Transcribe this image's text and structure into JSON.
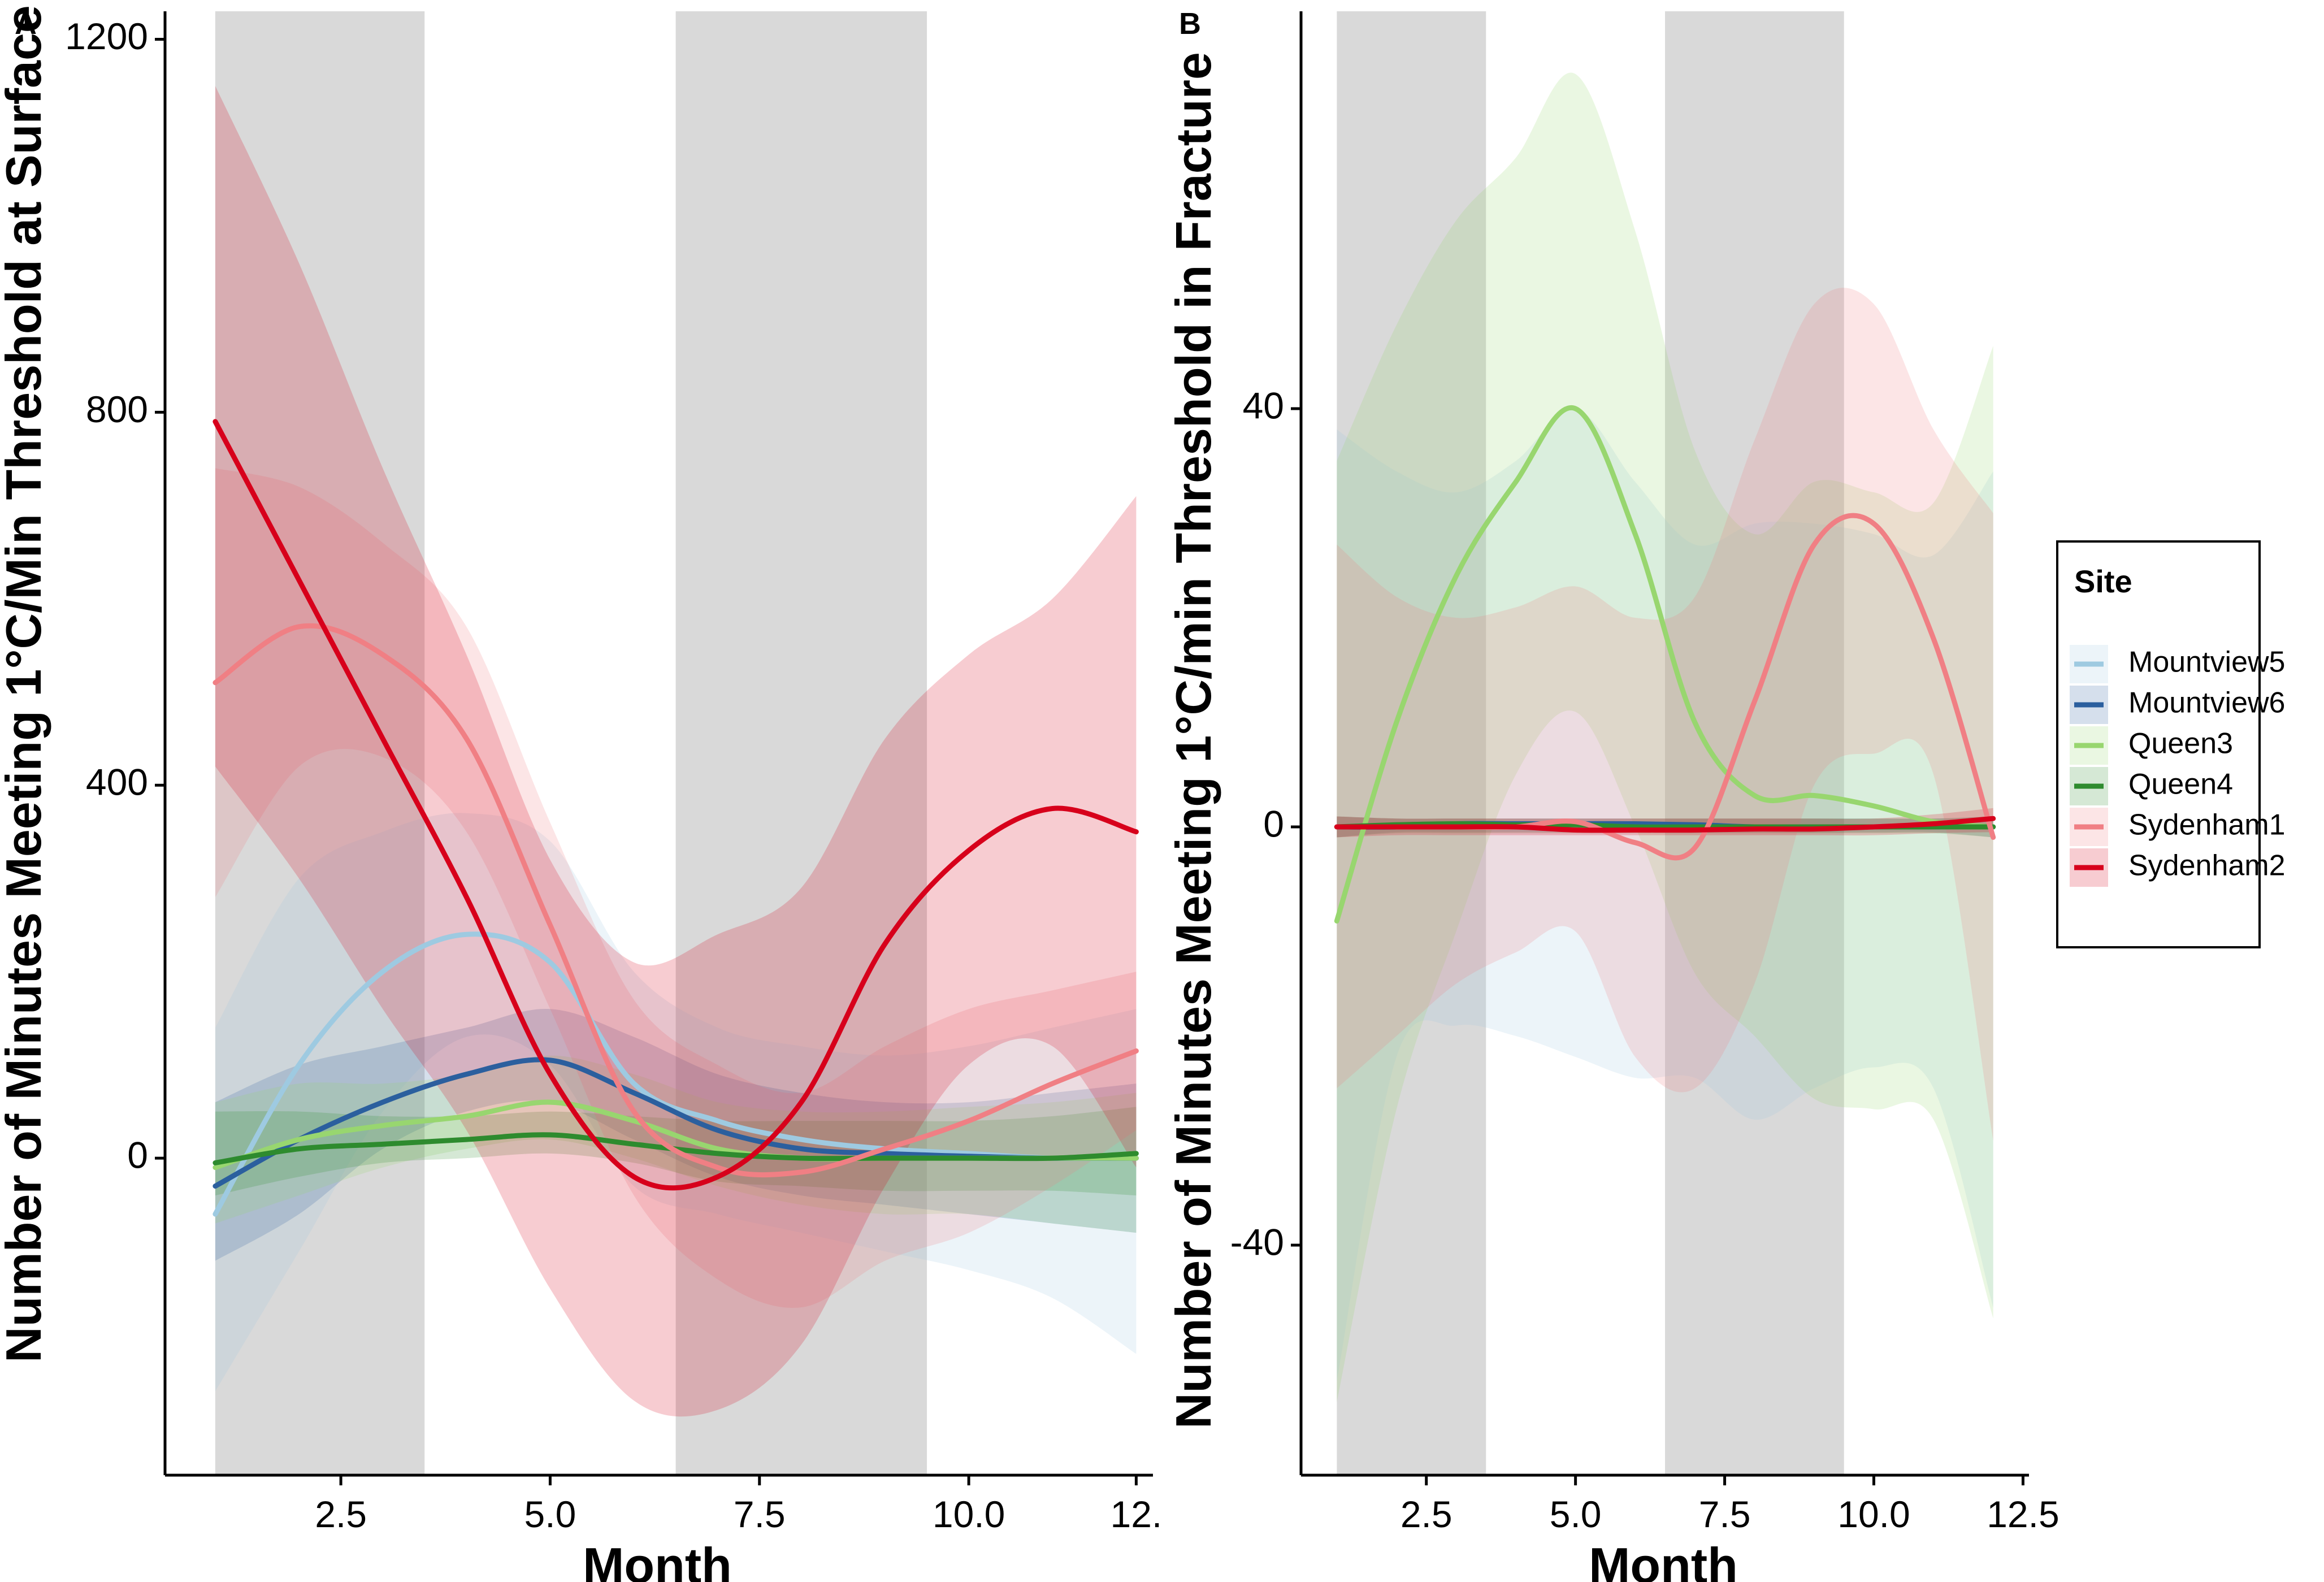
{
  "colors": {
    "shading": "#d9d9d9",
    "Mountview5": "#9ecae1",
    "Mountview6": "#2b5f9e",
    "Queen3": "#98d66f",
    "Queen4": "#2e8b2e",
    "Sydenham1": "#f07f84",
    "Sydenham2": "#d7001b"
  },
  "chart_data": [
    {
      "panel": "A",
      "type": "line",
      "xlabel": "Month",
      "ylabel": "Number of Minutes Meeting 1°C/Min Threshold at Surface",
      "xlim": [
        0.4,
        12.2
      ],
      "ylim": [
        -340,
        1230
      ],
      "xticks": [
        2.5,
        5.0,
        7.5,
        10.0,
        12.0
      ],
      "xtick_labels": [
        "2.5",
        "5.0",
        "7.5",
        "10.0",
        "12."
      ],
      "yticks": [
        0,
        400,
        800,
        1200
      ],
      "ytick_labels": [
        "0",
        "400",
        "800",
        "1200"
      ],
      "shaded_x_ranges": [
        [
          1.0,
          3.5
        ],
        [
          6.5,
          9.5
        ]
      ],
      "grid": false,
      "series": [
        {
          "name": "Mountview5",
          "x": [
            1,
            2,
            3,
            4,
            5,
            6,
            7,
            8,
            9,
            10,
            11,
            12
          ],
          "y": [
            -60,
            100,
            200,
            240,
            210,
            80,
            40,
            20,
            10,
            5,
            0,
            0
          ],
          "lower": [
            -250,
            -100,
            50,
            130,
            100,
            -30,
            -60,
            -80,
            -100,
            -120,
            -150,
            -210
          ],
          "upper": [
            140,
            300,
            350,
            370,
            340,
            200,
            140,
            120,
            110,
            120,
            140,
            160
          ]
        },
        {
          "name": "Mountview6",
          "x": [
            1,
            2,
            3,
            4,
            5,
            6,
            7,
            8,
            9,
            10,
            11,
            12
          ],
          "y": [
            -30,
            20,
            60,
            90,
            105,
            70,
            30,
            10,
            5,
            2,
            0,
            0
          ],
          "lower": [
            -110,
            -60,
            10,
            50,
            60,
            20,
            -20,
            -40,
            -50,
            -60,
            -70,
            -80
          ],
          "upper": [
            60,
            100,
            120,
            140,
            160,
            130,
            90,
            70,
            60,
            60,
            70,
            80
          ]
        },
        {
          "name": "Queen3",
          "x": [
            1,
            2,
            3,
            4,
            5,
            6,
            7,
            8,
            9,
            10,
            11,
            12
          ],
          "y": [
            -10,
            20,
            35,
            45,
            60,
            40,
            10,
            0,
            0,
            0,
            0,
            0
          ],
          "lower": [
            -70,
            -40,
            -10,
            10,
            20,
            0,
            -30,
            -50,
            -60,
            -60,
            -70,
            -80
          ],
          "upper": [
            60,
            80,
            80,
            90,
            110,
            90,
            60,
            50,
            50,
            55,
            60,
            70
          ]
        },
        {
          "name": "Queen4",
          "x": [
            1,
            2,
            3,
            4,
            5,
            6,
            7,
            8,
            9,
            10,
            11,
            12
          ],
          "y": [
            -5,
            10,
            15,
            20,
            25,
            15,
            5,
            0,
            0,
            0,
            0,
            5
          ],
          "lower": [
            -40,
            -20,
            -5,
            0,
            5,
            -5,
            -25,
            -30,
            -35,
            -35,
            -35,
            -40
          ],
          "upper": [
            50,
            50,
            45,
            45,
            50,
            45,
            40,
            40,
            40,
            40,
            45,
            55
          ]
        },
        {
          "name": "Sydenham1",
          "x": [
            1,
            2,
            3,
            4,
            5,
            6,
            7,
            8,
            9,
            10,
            11,
            12
          ],
          "y": [
            510,
            570,
            540,
            450,
            250,
            50,
            -10,
            -15,
            10,
            40,
            80,
            115
          ],
          "lower": [
            280,
            420,
            430,
            350,
            160,
            -40,
            -130,
            -160,
            -110,
            -80,
            -30,
            30
          ],
          "upper": [
            740,
            720,
            660,
            570,
            360,
            170,
            100,
            70,
            120,
            160,
            180,
            200
          ]
        },
        {
          "name": "Sydenham2",
          "x": [
            1,
            2,
            3,
            4,
            5,
            6,
            7,
            8,
            9,
            10,
            11,
            12
          ],
          "y": [
            790,
            620,
            450,
            280,
            90,
            -20,
            -20,
            60,
            230,
            330,
            375,
            350
          ],
          "lower": [
            420,
            300,
            160,
            30,
            -140,
            -260,
            -270,
            -200,
            -30,
            100,
            120,
            -10
          ],
          "upper": [
            1150,
            960,
            740,
            540,
            320,
            210,
            240,
            290,
            450,
            540,
            600,
            710
          ]
        }
      ]
    },
    {
      "panel": "B",
      "type": "line",
      "xlabel": "Month",
      "ylabel": "Number of Minutes Meeting 1°C/min Threshold in Fracture",
      "xlim": [
        0.4,
        12.6
      ],
      "ylim": [
        -62,
        78
      ],
      "xticks": [
        2.5,
        5.0,
        7.5,
        10.0,
        12.5
      ],
      "xtick_labels": [
        "2.5",
        "5.0",
        "7.5",
        "10.0",
        "12.5"
      ],
      "yticks": [
        -40,
        0,
        40
      ],
      "ytick_labels": [
        "-40",
        "0",
        "40"
      ],
      "shaded_x_ranges": [
        [
          1.0,
          3.5
        ],
        [
          6.5,
          9.5
        ]
      ],
      "grid": false,
      "legend_position": "right",
      "series": [
        {
          "name": "Mountview5",
          "x": [
            1,
            2,
            3,
            4,
            5,
            6,
            7,
            8,
            9,
            10,
            11,
            12
          ],
          "y": [
            0,
            0,
            0,
            0,
            0,
            0,
            0,
            0,
            0,
            0,
            0,
            0
          ],
          "lower": [
            -53,
            -22,
            -19,
            -20,
            -22,
            -24,
            -24,
            -28,
            -25,
            -23,
            -25,
            -46
          ],
          "upper": [
            38,
            34,
            32,
            35,
            40,
            33,
            27,
            29,
            29,
            28,
            26,
            34
          ]
        },
        {
          "name": "Mountview6",
          "x": [
            1,
            2,
            3,
            4,
            5,
            6,
            7,
            8,
            9,
            10,
            11,
            12
          ],
          "y": [
            0,
            0,
            0.3,
            0.3,
            0.3,
            0.3,
            0.2,
            0,
            0,
            0,
            0,
            0
          ],
          "lower": [
            -1,
            -0.5,
            -0.5,
            -0.5,
            -0.5,
            -0.5,
            -0.5,
            -0.5,
            -0.5,
            -0.5,
            -0.5,
            -1
          ],
          "upper": [
            1,
            0.8,
            0.8,
            0.8,
            0.8,
            0.8,
            0.8,
            0.8,
            0.8,
            0.8,
            0.8,
            1
          ]
        },
        {
          "name": "Queen3",
          "x": [
            1,
            2,
            3,
            4,
            5,
            6,
            7,
            8,
            9,
            10,
            11,
            12
          ],
          "y": [
            -9,
            10,
            24,
            33,
            40,
            28,
            10,
            3,
            3,
            2,
            0.5,
            0
          ],
          "lower": [
            -55,
            -27,
            -10,
            5,
            11,
            0,
            -14,
            -20,
            -26,
            -27,
            -28,
            -47
          ],
          "upper": [
            35,
            48,
            58,
            64,
            72,
            57,
            36,
            28,
            33,
            32,
            31,
            46
          ]
        },
        {
          "name": "Queen4",
          "x": [
            1,
            2,
            3,
            4,
            5,
            6,
            7,
            8,
            9,
            10,
            11,
            12
          ],
          "y": [
            0,
            0.2,
            0.3,
            0.2,
            0.2,
            0,
            0,
            0,
            0,
            0,
            0,
            0
          ],
          "lower": [
            -1,
            -0.6,
            -0.6,
            -0.6,
            -0.6,
            -0.6,
            -0.6,
            -0.6,
            -0.6,
            -0.6,
            -0.6,
            -1
          ],
          "upper": [
            1,
            0.8,
            0.8,
            0.8,
            0.8,
            0.8,
            0.8,
            0.8,
            0.8,
            0.8,
            0.8,
            1
          ]
        },
        {
          "name": "Sydenham1",
          "x": [
            1,
            2,
            3,
            4,
            5,
            6,
            7,
            8,
            9,
            10,
            11,
            12
          ],
          "y": [
            0,
            0,
            0,
            0,
            0.5,
            -1.5,
            -2,
            12,
            27,
            29,
            18,
            -1
          ],
          "lower": [
            -25,
            -20,
            -15,
            -12,
            -10,
            -22,
            -25,
            -15,
            4,
            7,
            5,
            -30
          ],
          "upper": [
            27,
            22,
            20,
            21,
            23,
            20,
            22,
            37,
            50,
            50,
            38,
            30
          ]
        },
        {
          "name": "Sydenham2",
          "x": [
            1,
            2,
            3,
            4,
            5,
            6,
            7,
            8,
            9,
            10,
            11,
            12
          ],
          "y": [
            0,
            0,
            0,
            0,
            -0.3,
            -0.3,
            -0.3,
            -0.2,
            -0.2,
            0,
            0.3,
            0.8
          ],
          "lower": [
            -1,
            -0.8,
            -0.8,
            -0.8,
            -0.8,
            -0.8,
            -0.8,
            -0.8,
            -0.8,
            -0.8,
            -0.6,
            -0.5
          ],
          "upper": [
            1,
            0.8,
            0.8,
            0.8,
            0.8,
            0.8,
            0.8,
            0.8,
            0.8,
            0.8,
            1.2,
            1.8
          ]
        }
      ]
    }
  ],
  "legend": {
    "title": "Site",
    "items": [
      "Mountview5",
      "Mountview6",
      "Queen3",
      "Queen4",
      "Sydenham1",
      "Sydenham2"
    ]
  }
}
